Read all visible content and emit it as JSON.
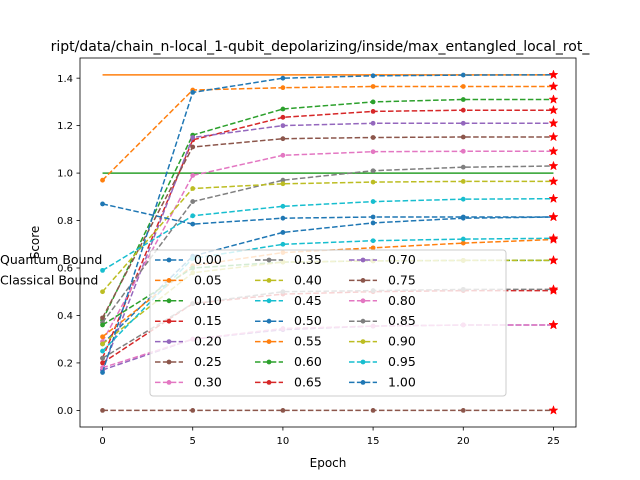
{
  "chart_data": {
    "type": "line",
    "title": "ript/data/chain_n-local_1-qubit_depolarizing/inside/max_entangled_local_rot_",
    "xlabel": "Epoch",
    "ylabel": "Score",
    "xlim": [
      -1.25,
      26.25
    ],
    "ylim": [
      -0.07,
      1.485
    ],
    "xticks": [
      0,
      5,
      10,
      15,
      20,
      25
    ],
    "yticks": [
      0.0,
      0.2,
      0.4,
      0.6,
      0.8,
      1.0,
      1.2,
      1.4
    ],
    "ytick_labels": [
      "0.0",
      "0.2",
      "0.4",
      "0.6",
      "0.8",
      "1.0",
      "1.2",
      "1.4"
    ],
    "grid": false,
    "legend_position": "lower center",
    "x": [
      0,
      5,
      10,
      15,
      20,
      25
    ],
    "series": [
      {
        "name": "0.00",
        "color": "#1f77b4",
        "values": [
          0.28,
          0.65,
          0.75,
          0.79,
          0.81,
          0.815
        ]
      },
      {
        "name": "0.05",
        "color": "#ff7f0e",
        "values": [
          0.97,
          1.35,
          1.36,
          1.365,
          1.365,
          1.365
        ]
      },
      {
        "name": "0.10",
        "color": "#2ca02c",
        "values": [
          0.38,
          1.16,
          1.27,
          1.3,
          1.31,
          1.31
        ]
      },
      {
        "name": "0.15",
        "color": "#d62728",
        "values": [
          0.22,
          1.14,
          1.235,
          1.26,
          1.265,
          1.265
        ]
      },
      {
        "name": "0.20",
        "color": "#9467bd",
        "values": [
          0.17,
          1.15,
          1.2,
          1.21,
          1.21,
          1.21
        ]
      },
      {
        "name": "0.25",
        "color": "#8c564b",
        "values": [
          0.39,
          1.11,
          1.145,
          1.15,
          1.152,
          1.152
        ]
      },
      {
        "name": "0.30",
        "color": "#e377c2",
        "values": [
          0.29,
          0.99,
          1.075,
          1.09,
          1.092,
          1.092
        ]
      },
      {
        "name": "0.35",
        "color": "#7f7f7f",
        "values": [
          0.37,
          0.88,
          0.97,
          1.01,
          1.025,
          1.03
        ]
      },
      {
        "name": "0.40",
        "color": "#bcbd22",
        "values": [
          0.5,
          0.935,
          0.955,
          0.962,
          0.965,
          0.965
        ]
      },
      {
        "name": "0.45",
        "color": "#17becf",
        "values": [
          0.59,
          0.82,
          0.86,
          0.88,
          0.89,
          0.892
        ]
      },
      {
        "name": "0.50",
        "color": "#1f77b4",
        "values": [
          0.87,
          0.785,
          0.81,
          0.815,
          0.815,
          0.815
        ]
      },
      {
        "name": "0.55",
        "color": "#ff7f0e",
        "values": [
          0.31,
          0.61,
          0.665,
          0.685,
          0.705,
          0.72
        ]
      },
      {
        "name": "0.60",
        "color": "#2ca02c",
        "values": [
          0.36,
          0.6,
          0.625,
          0.63,
          0.632,
          0.632
        ]
      },
      {
        "name": "0.65",
        "color": "#d62728",
        "values": [
          0.2,
          0.45,
          0.49,
          0.5,
          0.505,
          0.505
        ]
      },
      {
        "name": "0.70",
        "color": "#9467bd",
        "values": [
          0.17,
          0.3,
          0.34,
          0.355,
          0.36,
          0.36
        ]
      },
      {
        "name": "0.75",
        "color": "#8c564b",
        "values": [
          0.0,
          0.0,
          0.0,
          0.0,
          0.0,
          0.0
        ]
      },
      {
        "name": "0.80",
        "color": "#e377c2",
        "values": [
          0.18,
          0.3,
          0.345,
          0.355,
          0.36,
          0.36
        ]
      },
      {
        "name": "0.85",
        "color": "#7f7f7f",
        "values": [
          0.22,
          0.45,
          0.5,
          0.505,
          0.51,
          0.51
        ]
      },
      {
        "name": "0.90",
        "color": "#bcbd22",
        "values": [
          0.28,
          0.58,
          0.625,
          0.63,
          0.632,
          0.632
        ]
      },
      {
        "name": "0.95",
        "color": "#17becf",
        "values": [
          0.25,
          0.64,
          0.7,
          0.715,
          0.722,
          0.725
        ]
      },
      {
        "name": "1.00",
        "color": "#1f77b4",
        "values": [
          0.16,
          1.34,
          1.4,
          1.41,
          1.413,
          1.414
        ]
      }
    ],
    "bounds": [
      {
        "name": "Quantum Bound",
        "color": "#ff7f0e",
        "value": 1.414
      },
      {
        "name": "Classical Bound",
        "color": "#2ca02c",
        "value": 1.0
      }
    ]
  }
}
